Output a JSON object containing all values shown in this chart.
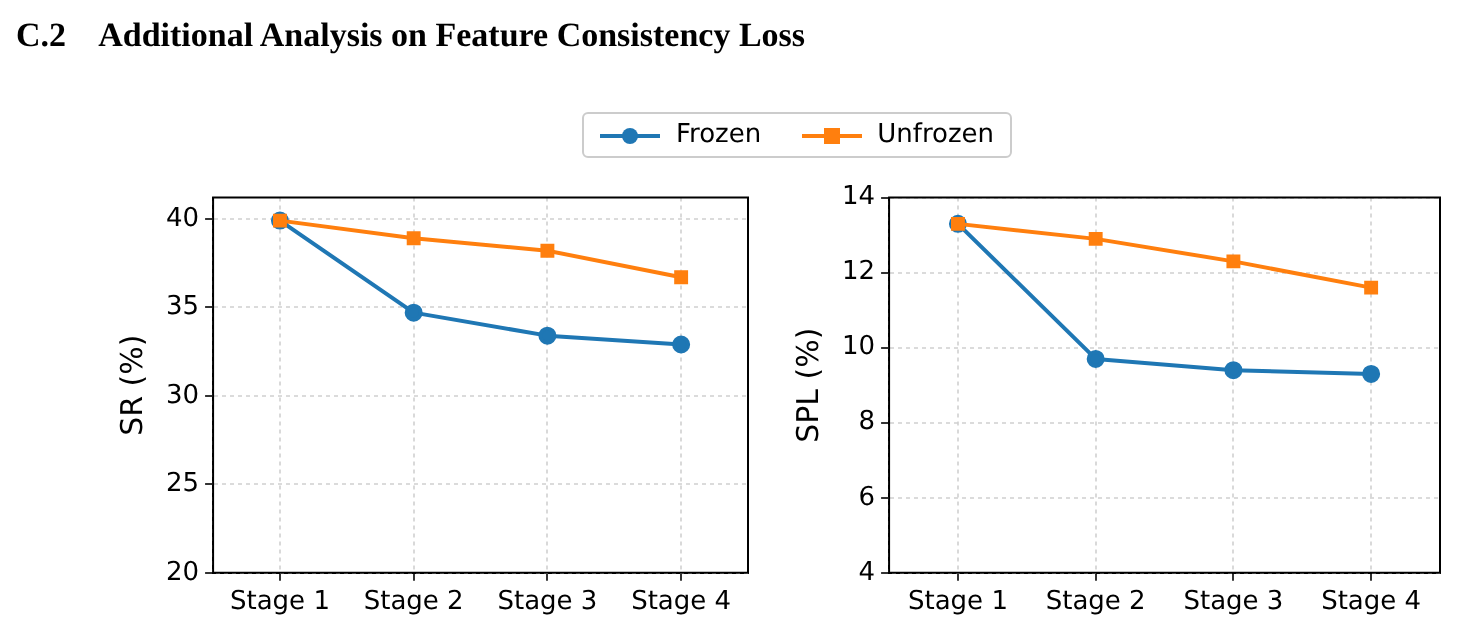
{
  "chart_data": [
    {
      "type": "line",
      "title": "C.2    Additional Analysis on Feature Consistency Loss",
      "categories": [
        "Stage 1",
        "Stage 2",
        "Stage 3",
        "Stage 4"
      ],
      "ylabel": "SR (%)",
      "ylim": [
        20,
        41.2
      ],
      "yticks": [
        20,
        25,
        30,
        35,
        40
      ],
      "grid": true,
      "legend": "top",
      "series": [
        {
          "name": "Frozen",
          "color": "#1f77b4",
          "marker": "circle",
          "values": [
            39.9,
            34.7,
            33.4,
            32.9
          ]
        },
        {
          "name": "Unfrozen",
          "color": "#ff7f0e",
          "marker": "square",
          "values": [
            39.9,
            38.9,
            38.2,
            36.7
          ]
        }
      ]
    },
    {
      "type": "line",
      "categories": [
        "Stage 1",
        "Stage 2",
        "Stage 3",
        "Stage 4"
      ],
      "ylabel": "SPL (%)",
      "ylim": [
        4,
        14
      ],
      "yticks": [
        4,
        6,
        8,
        10,
        12,
        14
      ],
      "grid": true,
      "series": [
        {
          "color": "#1f77b4",
          "marker": "circle",
          "values": [
            13.3,
            9.7,
            9.4,
            9.3
          ]
        },
        {
          "color": "#ff7f0e",
          "marker": "square",
          "values": [
            13.3,
            12.9,
            12.3,
            11.6
          ]
        }
      ]
    }
  ]
}
